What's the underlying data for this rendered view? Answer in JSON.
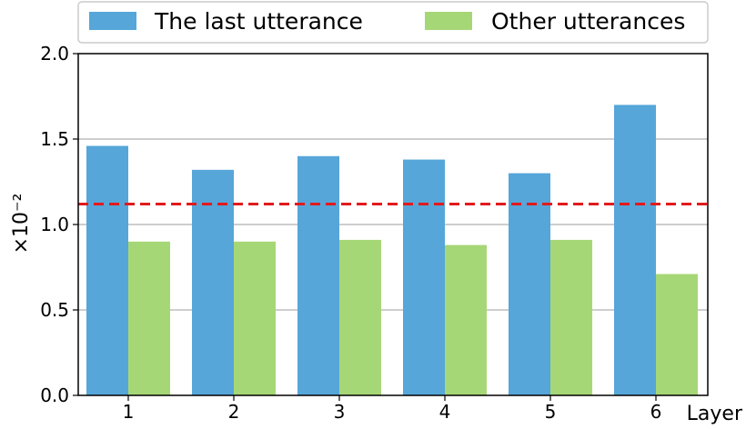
{
  "chart_data": {
    "type": "bar",
    "categories": [
      "1",
      "2",
      "3",
      "4",
      "5",
      "6"
    ],
    "series": [
      {
        "name": "The last utterance",
        "color": "#56a6d9",
        "values": [
          1.46,
          1.32,
          1.4,
          1.38,
          1.3,
          1.7
        ]
      },
      {
        "name": "Other utterances",
        "color": "#a6d776",
        "values": [
          0.9,
          0.9,
          0.91,
          0.88,
          0.91,
          0.71
        ]
      }
    ],
    "reference_line": {
      "value": 1.12,
      "color": "#e31a1c",
      "style": "dashed"
    },
    "xlabel": "Layer",
    "ylabel": "×10⁻²",
    "ylim": [
      0,
      2.0
    ],
    "yticks": [
      "0.0",
      "0.5",
      "1.0",
      "1.5",
      "2.0"
    ],
    "grid": "horizontal",
    "legend": "top-center"
  }
}
